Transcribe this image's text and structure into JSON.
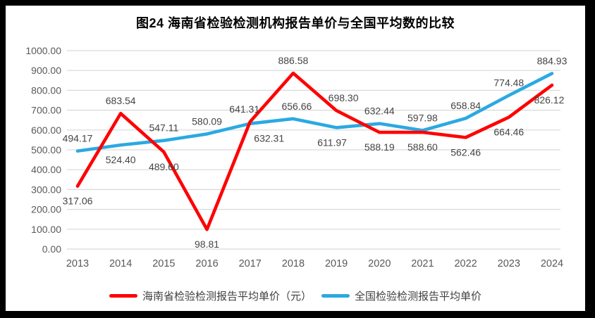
{
  "title": "图24  海南省检验检测机构报告单价与全国平均数的比较",
  "frame_color": "#000000",
  "background_color": "#ffffff",
  "chart_data": {
    "type": "line",
    "title": "图24  海南省检验检测机构报告单价与全国平均数的比较",
    "categories": [
      "2013",
      "2014",
      "2015",
      "2016",
      "2017",
      "2018",
      "2019",
      "2020",
      "2021",
      "2022",
      "2023",
      "2024"
    ],
    "series": [
      {
        "name": "海南省检验检测报告平均单价（元）",
        "color": "#FE0000",
        "values": [
          317.06,
          683.54,
          489.6,
          98.81,
          641.31,
          886.58,
          698.3,
          588.19,
          588.6,
          562.46,
          664.46,
          826.12
        ],
        "label_positions": [
          "below",
          "above",
          "below",
          "below",
          "above",
          "above",
          "above",
          "below",
          "below",
          "below",
          "below",
          "below"
        ],
        "label_dx": [
          0,
          0,
          0,
          0,
          -8,
          0,
          10,
          0,
          0,
          0,
          0,
          -4
        ]
      },
      {
        "name": "全国检验检测报告平均单价",
        "color": "#2BA9E1",
        "values": [
          494.17,
          524.4,
          547.11,
          580.09,
          632.31,
          656.66,
          611.97,
          632.44,
          597.98,
          658.84,
          774.48,
          884.93
        ],
        "label_positions": [
          "above",
          "below",
          "above",
          "above",
          "below",
          "above",
          "below",
          "above",
          "above",
          "above",
          "above",
          "above"
        ],
        "label_dx": [
          0,
          0,
          0,
          0,
          27,
          5,
          -6,
          0,
          0,
          0,
          0,
          0
        ]
      }
    ],
    "xlabel": "",
    "ylabel": "",
    "ylim": [
      0,
      1000
    ],
    "ytick_step": 100,
    "ytick_labels": [
      "0.00",
      "100.00",
      "200.00",
      "300.00",
      "400.00",
      "500.00",
      "600.00",
      "700.00",
      "800.00",
      "900.00",
      "1000.00"
    ],
    "grid": "horizontal",
    "gridline_color": "#D9D9D9",
    "tick_color": "#595959",
    "data_label_color": "#444444",
    "legend_position": "bottom",
    "value_format": "0.00"
  }
}
